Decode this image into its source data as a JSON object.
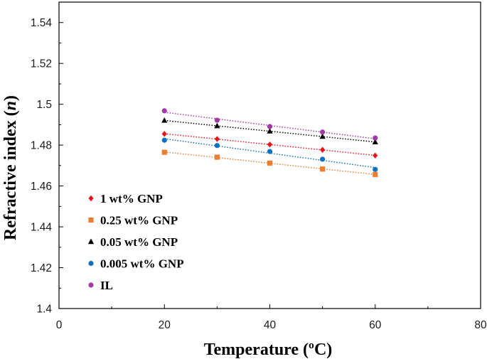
{
  "chart_data": {
    "type": "scatter",
    "title": "",
    "xlabel": "Temperature (ºC)",
    "ylabel_prefix": "Refractive index (",
    "ylabel_var": "n",
    "ylabel_suffix": ")",
    "xlim": [
      0,
      80
    ],
    "ylim": [
      1.4,
      1.55
    ],
    "x_ticks": [
      0,
      20,
      40,
      60,
      80
    ],
    "y_ticks": [
      1.4,
      1.42,
      1.44,
      1.46,
      1.48,
      1.5,
      1.52,
      1.54
    ],
    "y_tick_labels": [
      "1.4",
      "1.42",
      "1.44",
      "1.46",
      "1.48",
      "1.5",
      "1.52",
      "1.54"
    ],
    "grid": false,
    "legend_position": "lower-left",
    "series": [
      {
        "name": "1 wt% GNP",
        "marker": "diamond",
        "color": "#e8141b",
        "trend": "dotted",
        "x": [
          20,
          30,
          40,
          50,
          60
        ],
        "y": [
          1.4855,
          1.483,
          1.4803,
          1.4777,
          1.4749
        ]
      },
      {
        "name": "0.25 wt% GNP",
        "marker": "square",
        "color": "#ed7d31",
        "trend": "dotted",
        "x": [
          20,
          30,
          40,
          50,
          60
        ],
        "y": [
          1.4765,
          1.4741,
          1.4712,
          1.4683,
          1.4656
        ]
      },
      {
        "name": "0.05 wt% GNP",
        "marker": "triangle",
        "color": "#000000",
        "trend": "dotted",
        "x": [
          20,
          30,
          40,
          50,
          60
        ],
        "y": [
          1.4921,
          1.4894,
          1.4868,
          1.4842,
          1.4815
        ]
      },
      {
        "name": "0.005 wt% GNP",
        "marker": "circle",
        "color": "#0e70c0",
        "trend": "dotted",
        "x": [
          20,
          30,
          40,
          50,
          60
        ],
        "y": [
          1.4824,
          1.4798,
          1.4769,
          1.4731,
          1.4681
        ]
      },
      {
        "name": "IL",
        "marker": "circle",
        "color": "#a23aa5",
        "trend": "dotted",
        "x": [
          20,
          30,
          40,
          50,
          60
        ],
        "y": [
          1.4968,
          1.4922,
          1.4891,
          1.4864,
          1.4835
        ]
      }
    ]
  }
}
